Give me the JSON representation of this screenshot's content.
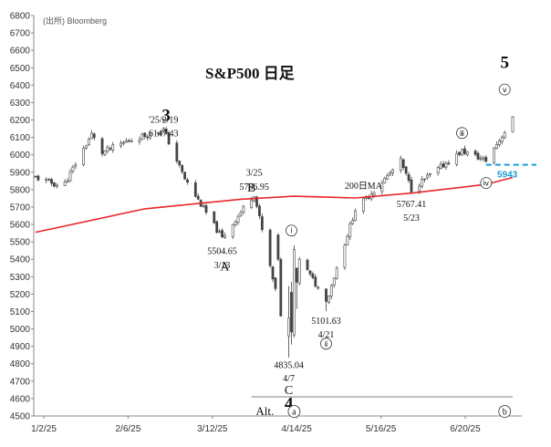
{
  "source_label": "(出所) Bloomberg",
  "chart_data": {
    "type": "candlestick",
    "title": "S&P500 日足",
    "ylim": [
      4500,
      6800
    ],
    "yticks": [
      4500,
      4600,
      4700,
      4800,
      4900,
      5000,
      5100,
      5200,
      5300,
      5400,
      5500,
      5600,
      5700,
      5800,
      5900,
      6000,
      6100,
      6200,
      6300,
      6400,
      6500,
      6600,
      6700,
      6800
    ],
    "x_tick_labels": [
      "1/2/25",
      "2/6/25",
      "3/12/25",
      "4/14/25",
      "5/16/25",
      "6/20/25"
    ],
    "x_range_dates": [
      "2025-01-02",
      "2025-06-30"
    ],
    "candle_color": "#444444",
    "key_points": [
      {
        "date": "2025-01-02",
        "close": 5870
      },
      {
        "date": "2025-01-10",
        "close": 5827
      },
      {
        "date": "2025-01-13",
        "close": 5836
      },
      {
        "date": "2025-01-23",
        "close": 6118
      },
      {
        "date": "2025-01-27",
        "close": 6012
      },
      {
        "date": "2025-02-06",
        "close": 6083
      },
      {
        "date": "2025-02-19",
        "close": 6144
      },
      {
        "date": "2025-02-27",
        "close": 5861
      },
      {
        "date": "2025-03-13",
        "close": 5521
      },
      {
        "date": "2025-03-25",
        "close": 5776
      },
      {
        "date": "2025-04-04",
        "close": 5074
      },
      {
        "date": "2025-04-07",
        "close": 5062
      },
      {
        "date": "2025-04-08",
        "close": 4982
      },
      {
        "date": "2025-04-09",
        "close": 5456
      },
      {
        "date": "2025-04-21",
        "close": 5158
      },
      {
        "date": "2025-05-02",
        "close": 5686
      },
      {
        "date": "2025-05-12",
        "close": 5844
      },
      {
        "date": "2025-05-19",
        "close": 5963
      },
      {
        "date": "2025-05-23",
        "close": 5802
      },
      {
        "date": "2025-06-11",
        "close": 6022
      },
      {
        "date": "2025-06-20",
        "close": 5967
      },
      {
        "date": "2025-06-30",
        "close": 6205
      }
    ],
    "series": [
      {
        "name": "200日MA",
        "color": "#e8262a",
        "points": [
          [
            "2025-01-02",
            5555
          ],
          [
            "2025-02-12",
            5690
          ],
          [
            "2025-03-20",
            5745
          ],
          [
            "2025-04-09",
            5762
          ],
          [
            "2025-05-02",
            5752
          ],
          [
            "2025-05-23",
            5780
          ],
          [
            "2025-06-20",
            5830
          ],
          [
            "2025-06-30",
            5870
          ]
        ]
      }
    ],
    "reference_line": {
      "value": 5943,
      "label": "5943",
      "color": "#1a9ed6",
      "from": "2025-06-20",
      "to": "2025-06-30"
    },
    "annotations": [
      {
        "text": "'25/2/19",
        "date": "2025-02-19",
        "y": 6185
      },
      {
        "text": "6147.43",
        "date": "2025-02-19",
        "y": 6105
      },
      {
        "text": "5504.65",
        "date": "2025-03-13",
        "y": 5430
      },
      {
        "text": "3/13",
        "date": "2025-03-13",
        "y": 5350
      },
      {
        "text": "3/25",
        "date": "2025-03-25",
        "y": 5880
      },
      {
        "text": "5786.95",
        "date": "2025-03-25",
        "y": 5800
      },
      {
        "text": "4835.04",
        "date": "2025-04-07",
        "y": 4775
      },
      {
        "text": "4/7",
        "date": "2025-04-07",
        "y": 4700
      },
      {
        "text": "5101.63",
        "date": "2025-04-21",
        "y": 5030
      },
      {
        "text": "4/21",
        "date": "2025-04-21",
        "y": 4950
      },
      {
        "text": "5767.41",
        "date": "2025-05-23",
        "y": 5700
      },
      {
        "text": "5/23",
        "date": "2025-05-23",
        "y": 5620
      },
      {
        "text": "200日MA",
        "date": "2025-05-05",
        "y": 5805
      }
    ],
    "waves": [
      {
        "label": "3",
        "date": "2025-02-20",
        "y": 6195,
        "style": "big"
      },
      {
        "label": "A",
        "date": "2025-03-14",
        "y": 5335,
        "style": "mid"
      },
      {
        "label": "B",
        "date": "2025-03-24",
        "y": 5790,
        "style": "mid"
      },
      {
        "label": "C",
        "date": "2025-04-07",
        "y": 4625,
        "style": "mid"
      },
      {
        "label": "4",
        "date": "2025-04-07",
        "y": 4540,
        "style": "big"
      },
      {
        "label": "5",
        "date": "2025-06-27",
        "y": 6500,
        "style": "big"
      }
    ],
    "circled": [
      {
        "label": "ⅰ",
        "date": "2025-04-08",
        "y": 5565
      },
      {
        "label": "ⅱ",
        "date": "2025-04-21",
        "y": 4915
      },
      {
        "label": "ⅲ",
        "date": "2025-06-11",
        "y": 6125
      },
      {
        "label": "ⅳ",
        "date": "2025-06-20",
        "y": 5838
      },
      {
        "label": "ⅴ",
        "date": "2025-06-27",
        "y": 6375
      }
    ],
    "alt_label": "Alt.",
    "alt_circled": [
      {
        "label": "a",
        "date": "2025-04-09"
      },
      {
        "label": "b",
        "date": "2025-06-27"
      }
    ]
  }
}
